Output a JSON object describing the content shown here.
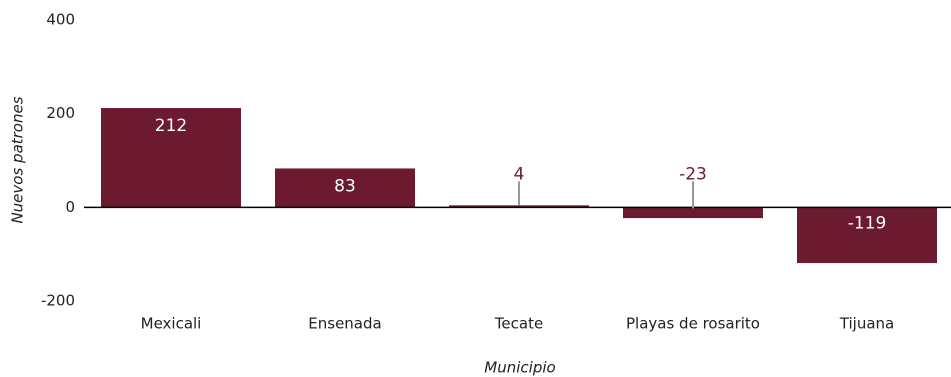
{
  "chart_data": {
    "type": "bar",
    "categories": [
      "Mexicali",
      "Ensenada",
      "Tecate",
      "Playas de rosarito",
      "Tijuana"
    ],
    "values": [
      212,
      83,
      4,
      -23,
      -119
    ],
    "data_labels": [
      "212",
      "83",
      "4",
      "-23",
      "-119"
    ],
    "title": "",
    "xlabel": "Municipio",
    "ylabel": "Nuevos patrones",
    "ylim": [
      -200,
      400
    ],
    "yticks": [
      -200,
      0,
      200,
      400
    ],
    "ytick_labels": [
      "-200",
      "0",
      "200",
      "400"
    ],
    "grid": false,
    "legend": "none",
    "colors": {
      "bar": "#6b1a2f",
      "label_inside": "#ffffff",
      "label_outside": "#6b1a2f",
      "leader_line": "#999999",
      "zero_line": "#000000"
    }
  }
}
